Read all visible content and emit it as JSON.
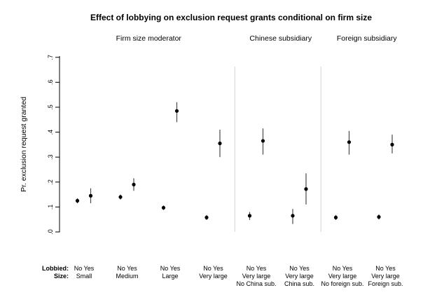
{
  "bottom_axis": {
    "lobbied_prefix": "Lobbied:",
    "size_prefix": "Size:"
  },
  "chart_data": {
    "type": "scatter",
    "title": "Effect of lobbying on exclusion request grants conditional on firm size",
    "ylabel": "Pr. exclusion request granted",
    "ylim": [
      0.0,
      0.7
    ],
    "ytick_values": [
      0.0,
      0.1,
      0.2,
      0.3,
      0.4,
      0.5,
      0.6,
      0.7
    ],
    "ytick_labels": [
      ".0",
      ".1",
      ".2",
      ".3",
      ".4",
      ".5",
      ".6",
      ".7"
    ],
    "grid": false,
    "legend": "none",
    "marker_color": "#000000",
    "ci_color": "#4a4a4a",
    "separator_color": "#d4d4d4",
    "panels": [
      {
        "header": "Firm size moderator",
        "groups": [
          {
            "lobbied_tick": "No Yes",
            "size": "Small",
            "sub": null,
            "points": [
              {
                "lobbied": "No",
                "est": 0.125,
                "ci": [
                  0.115,
                  0.135
                ]
              },
              {
                "lobbied": "Yes",
                "est": 0.145,
                "ci": [
                  0.115,
                  0.175
                ]
              }
            ]
          },
          {
            "lobbied_tick": "No Yes",
            "size": "Medium",
            "sub": null,
            "points": [
              {
                "lobbied": "No",
                "est": 0.14,
                "ci": [
                  0.13,
                  0.15
                ]
              },
              {
                "lobbied": "Yes",
                "est": 0.19,
                "ci": [
                  0.165,
                  0.215
                ]
              }
            ]
          },
          {
            "lobbied_tick": "No Yes",
            "size": "Large",
            "sub": null,
            "points": [
              {
                "lobbied": "No",
                "est": 0.097,
                "ci": [
                  0.088,
                  0.106
                ]
              },
              {
                "lobbied": "Yes",
                "est": 0.485,
                "ci": [
                  0.44,
                  0.52
                ]
              }
            ]
          },
          {
            "lobbied_tick": "No Yes",
            "size": "Very large",
            "sub": null,
            "points": [
              {
                "lobbied": "No",
                "est": 0.058,
                "ci": [
                  0.048,
                  0.068
                ]
              },
              {
                "lobbied": "Yes",
                "est": 0.355,
                "ci": [
                  0.3,
                  0.41
                ]
              }
            ]
          }
        ]
      },
      {
        "header": "Chinese subsidiary",
        "groups": [
          {
            "lobbied_tick": "No Yes",
            "size": "Very large",
            "sub": "No China sub.",
            "points": [
              {
                "lobbied": "No",
                "est": 0.065,
                "ci": [
                  0.048,
                  0.08
                ]
              },
              {
                "lobbied": "Yes",
                "est": 0.365,
                "ci": [
                  0.31,
                  0.415
                ]
              }
            ]
          },
          {
            "lobbied_tick": "No Yes",
            "size": "Very large",
            "sub": "China sub.",
            "points": [
              {
                "lobbied": "No",
                "est": 0.065,
                "ci": [
                  0.032,
                  0.092
                ]
              },
              {
                "lobbied": "Yes",
                "est": 0.172,
                "ci": [
                  0.11,
                  0.235
                ]
              }
            ]
          }
        ]
      },
      {
        "header": "Foreign subsidiary",
        "groups": [
          {
            "lobbied_tick": "No Yes",
            "size": "Very large",
            "sub": "No foreign sub.",
            "points": [
              {
                "lobbied": "No",
                "est": 0.058,
                "ci": [
                  0.048,
                  0.068
                ]
              },
              {
                "lobbied": "Yes",
                "est": 0.36,
                "ci": [
                  0.31,
                  0.405
                ]
              }
            ]
          },
          {
            "lobbied_tick": "No Yes",
            "size": "Very large",
            "sub": "Foreign sub.",
            "points": [
              {
                "lobbied": "No",
                "est": 0.06,
                "ci": [
                  0.05,
                  0.07
                ]
              },
              {
                "lobbied": "Yes",
                "est": 0.35,
                "ci": [
                  0.315,
                  0.39
                ]
              }
            ]
          }
        ]
      }
    ]
  }
}
